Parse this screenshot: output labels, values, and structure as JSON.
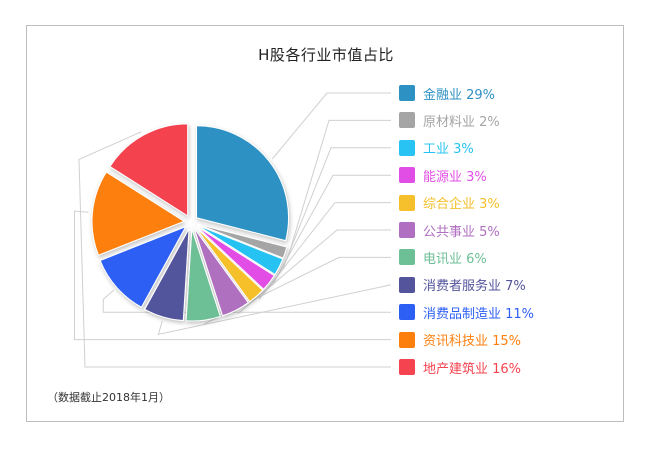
{
  "chart_data": {
    "type": "pie",
    "title": "H股各行业市值占比",
    "note": "（数据截止2018年1月）",
    "legend_position": "right",
    "slices": [
      {
        "label": "金融业",
        "value": 29,
        "display": "金融业 29%",
        "color": "#2e91c3"
      },
      {
        "label": "原材料业",
        "value": 2,
        "display": "原材料业 2%",
        "color": "#a5a5a5"
      },
      {
        "label": "工业",
        "value": 3,
        "display": "工业 3%",
        "color": "#28c3f2"
      },
      {
        "label": "能源业",
        "value": 3,
        "display": "能源业 3%",
        "color": "#e14ee5"
      },
      {
        "label": "综合企业",
        "value": 3,
        "display": "综合企业 3%",
        "color": "#f5c02c"
      },
      {
        "label": "公共事业",
        "value": 5,
        "display": "公共事业 5%",
        "color": "#b06fc0"
      },
      {
        "label": "电讯业",
        "value": 6,
        "display": "电讯业 6%",
        "color": "#6dbf96"
      },
      {
        "label": "消费者服务业",
        "value": 7,
        "display": "消费者服务业 7%",
        "color": "#53549c"
      },
      {
        "label": "消费品制造业",
        "value": 11,
        "display": "消费品制造业 11%",
        "color": "#2d5ff5"
      },
      {
        "label": "资讯科技业",
        "value": 15,
        "display": "资讯科技业 15%",
        "color": "#fd7f0e"
      },
      {
        "label": "地产建筑业",
        "value": 16,
        "display": "地产建筑业 16%",
        "color": "#f5434f"
      }
    ]
  }
}
